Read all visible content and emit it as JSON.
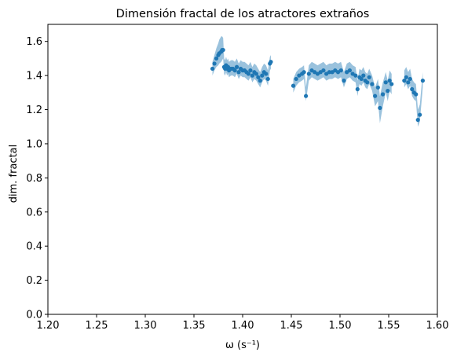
{
  "chart_data": {
    "type": "scatter",
    "title": "Dimensión fractal de los atractores extraños",
    "xlabel": "ω (s⁻¹)",
    "ylabel": "dim. fractal",
    "xlim": [
      1.2,
      1.6
    ],
    "ylim": [
      0.0,
      1.7
    ],
    "xticks": [
      1.2,
      1.25,
      1.3,
      1.35,
      1.4,
      1.45,
      1.5,
      1.55,
      1.6
    ],
    "xtick_labels": [
      "1.20",
      "1.25",
      "1.30",
      "1.35",
      "1.40",
      "1.45",
      "1.50",
      "1.55",
      "1.60"
    ],
    "yticks": [
      0.0,
      0.2,
      0.4,
      0.6,
      0.8,
      1.0,
      1.2,
      1.4,
      1.6
    ],
    "ytick_labels": [
      "0.0",
      "0.2",
      "0.4",
      "0.6",
      "0.8",
      "1.0",
      "1.2",
      "1.4",
      "1.6"
    ],
    "grid": false,
    "colors": {
      "points": "#1f77b4",
      "band": "#1f77b4",
      "band_opacity": 0.45
    },
    "series": [
      {
        "x": [
          1.369,
          1.371,
          1.373,
          1.375,
          1.376,
          1.378,
          1.379,
          1.38,
          1.381,
          1.382,
          1.383,
          1.384,
          1.385,
          1.386,
          1.388,
          1.39,
          1.392,
          1.394,
          1.396,
          1.398,
          1.4,
          1.402,
          1.404,
          1.406,
          1.408,
          1.41,
          1.412,
          1.414,
          1.416,
          1.418,
          1.42,
          1.422,
          1.424,
          1.426,
          1.428,
          1.429,
          1.452,
          1.455,
          1.458,
          1.461,
          1.463,
          1.465,
          1.468,
          1.471,
          1.474,
          1.477,
          1.48,
          1.483,
          1.486,
          1.489,
          1.492,
          1.495,
          1.498,
          1.501,
          1.504,
          1.507,
          1.51,
          1.513,
          1.516,
          1.518,
          1.52,
          1.522,
          1.524,
          1.526,
          1.528,
          1.53,
          1.533,
          1.536,
          1.539,
          1.541,
          1.544,
          1.547,
          1.549,
          1.551,
          1.553,
          1.566,
          1.568,
          1.57,
          1.572,
          1.574,
          1.576,
          1.578,
          1.58,
          1.582,
          1.585
        ],
        "y": [
          1.44,
          1.47,
          1.5,
          1.52,
          1.53,
          1.54,
          1.55,
          1.55,
          1.45,
          1.44,
          1.46,
          1.44,
          1.45,
          1.43,
          1.44,
          1.44,
          1.43,
          1.45,
          1.42,
          1.44,
          1.43,
          1.43,
          1.42,
          1.41,
          1.43,
          1.4,
          1.42,
          1.41,
          1.39,
          1.37,
          1.4,
          1.42,
          1.41,
          1.38,
          1.47,
          1.48,
          1.34,
          1.38,
          1.4,
          1.41,
          1.42,
          1.28,
          1.41,
          1.43,
          1.42,
          1.41,
          1.42,
          1.43,
          1.41,
          1.42,
          1.42,
          1.43,
          1.42,
          1.43,
          1.37,
          1.42,
          1.43,
          1.41,
          1.4,
          1.32,
          1.39,
          1.38,
          1.4,
          1.37,
          1.36,
          1.39,
          1.35,
          1.28,
          1.33,
          1.21,
          1.29,
          1.36,
          1.31,
          1.37,
          1.35,
          1.37,
          1.39,
          1.36,
          1.38,
          1.32,
          1.3,
          1.29,
          1.14,
          1.17,
          1.37
        ],
        "band_low": [
          1.4,
          1.43,
          1.45,
          1.46,
          1.47,
          1.48,
          1.49,
          1.5,
          1.41,
          1.4,
          1.42,
          1.4,
          1.41,
          1.39,
          1.4,
          1.4,
          1.39,
          1.41,
          1.38,
          1.4,
          1.39,
          1.39,
          1.38,
          1.37,
          1.39,
          1.36,
          1.38,
          1.37,
          1.35,
          1.33,
          1.36,
          1.38,
          1.37,
          1.34,
          1.43,
          1.44,
          1.3,
          1.34,
          1.36,
          1.37,
          1.38,
          1.25,
          1.37,
          1.39,
          1.38,
          1.37,
          1.38,
          1.39,
          1.37,
          1.38,
          1.38,
          1.39,
          1.38,
          1.39,
          1.33,
          1.38,
          1.39,
          1.37,
          1.36,
          1.28,
          1.35,
          1.34,
          1.36,
          1.33,
          1.32,
          1.35,
          1.31,
          1.22,
          1.25,
          1.12,
          1.22,
          1.3,
          1.25,
          1.31,
          1.29,
          1.33,
          1.35,
          1.32,
          1.34,
          1.28,
          1.26,
          1.25,
          1.1,
          1.13,
          1.33
        ],
        "band_high": [
          1.48,
          1.52,
          1.56,
          1.59,
          1.61,
          1.63,
          1.63,
          1.62,
          1.5,
          1.49,
          1.51,
          1.49,
          1.5,
          1.48,
          1.49,
          1.49,
          1.48,
          1.5,
          1.47,
          1.49,
          1.48,
          1.48,
          1.47,
          1.46,
          1.48,
          1.45,
          1.47,
          1.46,
          1.44,
          1.42,
          1.45,
          1.47,
          1.46,
          1.43,
          1.51,
          1.52,
          1.38,
          1.42,
          1.44,
          1.45,
          1.46,
          1.33,
          1.46,
          1.48,
          1.47,
          1.46,
          1.47,
          1.48,
          1.46,
          1.47,
          1.47,
          1.48,
          1.47,
          1.48,
          1.42,
          1.47,
          1.48,
          1.46,
          1.45,
          1.37,
          1.44,
          1.43,
          1.45,
          1.42,
          1.41,
          1.44,
          1.4,
          1.33,
          1.38,
          1.28,
          1.36,
          1.42,
          1.37,
          1.43,
          1.41,
          1.43,
          1.45,
          1.42,
          1.44,
          1.38,
          1.36,
          1.35,
          1.2,
          1.23,
          1.42
        ]
      }
    ]
  }
}
